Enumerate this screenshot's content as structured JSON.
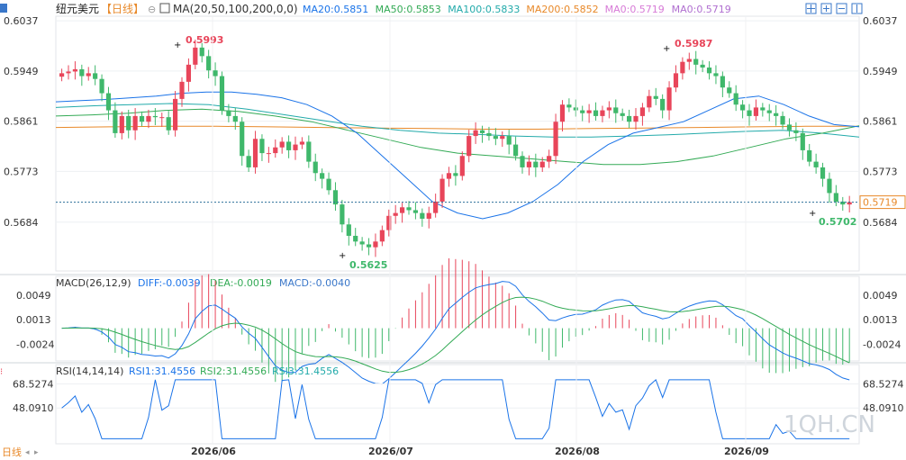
{
  "header": {
    "symbol": "纽元美元",
    "period_tag": "【日线】",
    "ma_label": "MA(20,50,100,200,0,0)",
    "ma_values": [
      {
        "name": "MA20",
        "text": "MA20:0.5851",
        "color": "#1a73e8"
      },
      {
        "name": "MA50",
        "text": "MA50:0.5853",
        "color": "#33aa55"
      },
      {
        "name": "MA100",
        "text": "MA100:0.5833",
        "color": "#22aaaa"
      },
      {
        "name": "MA200",
        "text": "MA200:0.5852",
        "color": "#e8892a"
      },
      {
        "name": "MA0",
        "text": "MA0:0.5719",
        "color": "#d77bd7"
      },
      {
        "name": "MA0",
        "text": "MA0:0.5719",
        "color": "#b06fd0"
      }
    ]
  },
  "toolbar": {
    "icons": [
      "crosshair-icon",
      "zoom-in-icon",
      "zoom-out-icon",
      "grid-icon"
    ]
  },
  "price_axis": {
    "ticks": [
      "0.6037",
      "0.5949",
      "0.5861",
      "0.5773",
      "0.5684"
    ],
    "current_price": "0.5719"
  },
  "annotations": {
    "high1": "0.5993",
    "high2": "0.5987",
    "low1": "0.5625",
    "low2": "0.5702"
  },
  "macd": {
    "label": "MACD(26,12,9)",
    "diff": "DIFF:-0.0039",
    "dea": "DEA:-0.0019",
    "macd": "MACD:-0.0040",
    "ticks": [
      "0.0049",
      "0.0013",
      "-0.0024"
    ]
  },
  "rsi": {
    "label": "RSI(14,14,14)",
    "rsi1": "RSI1:31.4556",
    "rsi2": "RSI2:31.4556",
    "rsi3": "RSI3:31.4556",
    "ticks": [
      "68.5274",
      "48.0910"
    ]
  },
  "x_axis": {
    "labels": [
      "2026/06",
      "2026/07",
      "2026/08",
      "2026/09"
    ]
  },
  "footer": {
    "period": "日线",
    "watermark": "1QH.CN"
  },
  "colors": {
    "up": "#e8455a",
    "down": "#3fb86b",
    "ma20": "#1a73e8",
    "ma50": "#33aa55",
    "ma100": "#22aaaa",
    "ma200": "#e8892a"
  },
  "chart_data": {
    "type": "candlestick",
    "y_range": [
      0.56,
      0.6045
    ],
    "x_labels": [
      "2026/06",
      "2026/07",
      "2026/08",
      "2026/09"
    ],
    "candles_close": [
      0.5945,
      0.5948,
      0.5952,
      0.594,
      0.5945,
      0.5935,
      0.591,
      0.588,
      0.584,
      0.587,
      0.5845,
      0.587,
      0.586,
      0.587,
      0.5868,
      0.5868,
      0.5845,
      0.59,
      0.593,
      0.596,
      0.599,
      0.5975,
      0.595,
      0.594,
      0.588,
      0.587,
      0.586,
      0.58,
      0.578,
      0.583,
      0.5805,
      0.5805,
      0.5815,
      0.5825,
      0.581,
      0.582,
      0.5825,
      0.579,
      0.577,
      0.576,
      0.574,
      0.5715,
      0.568,
      0.566,
      0.565,
      0.5645,
      0.564,
      0.565,
      0.567,
      0.5695,
      0.57,
      0.571,
      0.5705,
      0.57,
      0.569,
      0.57,
      0.572,
      0.576,
      0.577,
      0.5765,
      0.58,
      0.5835,
      0.5845,
      0.584,
      0.5835,
      0.583,
      0.5835,
      0.582,
      0.58,
      0.578,
      0.579,
      0.578,
      0.579,
      0.58,
      0.586,
      0.589,
      0.5885,
      0.588,
      0.5875,
      0.588,
      0.587,
      0.588,
      0.5885,
      0.5875,
      0.587,
      0.586,
      0.587,
      0.5885,
      0.5905,
      0.59,
      0.588,
      0.592,
      0.5945,
      0.5965,
      0.597,
      0.596,
      0.5955,
      0.5945,
      0.594,
      0.592,
      0.591,
      0.589,
      0.588,
      0.587,
      0.5885,
      0.588,
      0.5875,
      0.587,
      0.5855,
      0.5845,
      0.584,
      0.581,
      0.579,
      0.578,
      0.576,
      0.5735,
      0.572,
      0.5715,
      0.5719
    ],
    "ma20": [
      0.5895,
      0.5897,
      0.5899,
      0.5902,
      0.5905,
      0.591,
      0.5912,
      0.5912,
      0.5908,
      0.5902,
      0.589,
      0.587,
      0.584,
      0.58,
      0.576,
      0.572,
      0.57,
      0.569,
      0.57,
      0.572,
      0.575,
      0.579,
      0.582,
      0.584,
      0.585,
      0.586,
      0.588,
      0.59,
      0.5905,
      0.589,
      0.587,
      0.5855,
      0.5851
    ],
    "ma50": [
      0.587,
      0.5872,
      0.5875,
      0.588,
      0.5882,
      0.5878,
      0.587,
      0.586,
      0.5845,
      0.583,
      0.5815,
      0.5805,
      0.58,
      0.5795,
      0.579,
      0.5785,
      0.5785,
      0.579,
      0.58,
      0.5815,
      0.583,
      0.584,
      0.5853
    ],
    "ma100": [
      0.5885,
      0.5888,
      0.589,
      0.5892,
      0.589,
      0.5882,
      0.5872,
      0.5862,
      0.5852,
      0.5845,
      0.584,
      0.5838,
      0.5835,
      0.5833,
      0.5833,
      0.5835,
      0.5837,
      0.584,
      0.5843,
      0.5845,
      0.584,
      0.5833
    ],
    "ma200": [
      0.585,
      0.5851,
      0.5852,
      0.5852,
      0.5851,
      0.585,
      0.5849,
      0.5848,
      0.5847,
      0.5847,
      0.5848,
      0.5849,
      0.585,
      0.5851,
      0.5852,
      0.5852
    ]
  }
}
